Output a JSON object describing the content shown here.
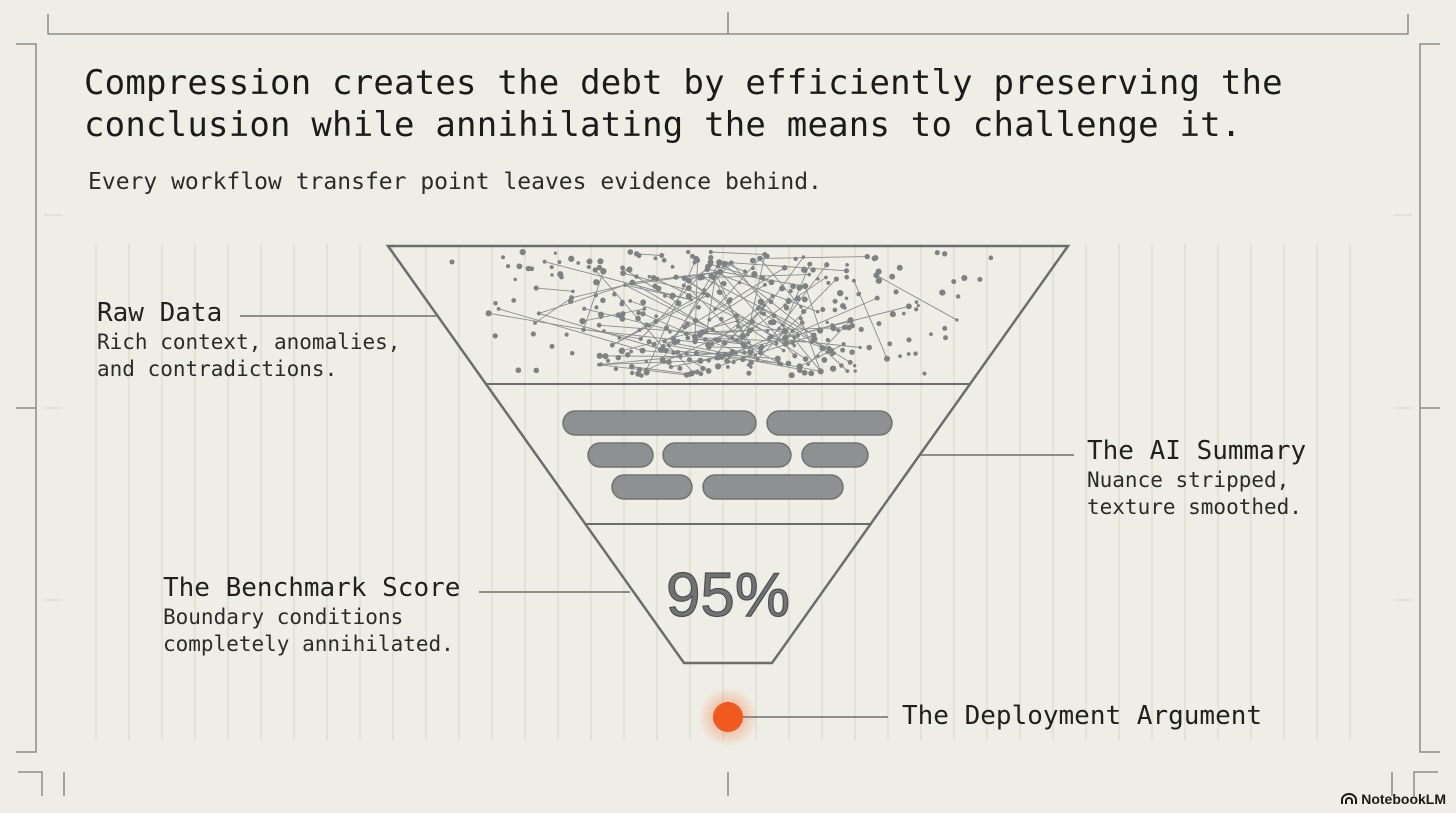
{
  "headline": {
    "line1": "Compression creates the debt by efficiently preserving the",
    "line2": "conclusion while annihilating the means to challenge it."
  },
  "subtitle": "Every workflow transfer point leaves evidence behind.",
  "stages": {
    "raw_data": {
      "title": "Raw Data",
      "desc1": "Rich context, anomalies,",
      "desc2": "and contradictions."
    },
    "ai_summary": {
      "title": "The AI Summary",
      "desc1": "Nuance stripped,",
      "desc2": "texture smoothed."
    },
    "benchmark": {
      "title": "The Benchmark Score",
      "desc1": "Boundary conditions",
      "desc2": "completely annihilated.",
      "value": "95%"
    },
    "deployment": {
      "title": "The Deployment Argument"
    }
  },
  "colors": {
    "accent": "#f05a1e",
    "line": "#6b6e6f",
    "bar": "#8d9192",
    "background": "#efeee6"
  },
  "logo": {
    "text": "NotebookLM",
    "icon": "notebooklm-icon"
  }
}
